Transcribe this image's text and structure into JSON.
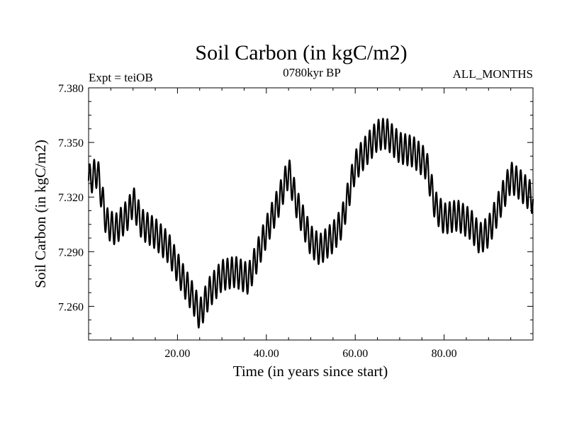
{
  "chart_data": {
    "type": "line",
    "title": "Soil Carbon (in kgC/m2)",
    "subtitle": "0780kyr BP",
    "left_label": "Expt = teiOB",
    "right_label": "ALL_MONTHS",
    "xlabel": "Time (in years since start)",
    "ylabel": "Soil Carbon (in kgC/m2)",
    "xlim": [
      0,
      100
    ],
    "ylim": [
      7.2415,
      7.38
    ],
    "xticks": [
      20,
      40,
      60,
      80
    ],
    "xtick_labels": [
      "20.00",
      "40.00",
      "60.00",
      "80.00"
    ],
    "yticks": [
      7.26,
      7.29,
      7.32,
      7.35,
      7.38
    ],
    "ytick_labels": [
      "7.260",
      "7.290",
      "7.320",
      "7.350",
      "7.380"
    ],
    "grid": false,
    "series": [
      {
        "name": "Soil Carbon",
        "cycle_period_years": 1,
        "cycle_amplitude": 0.0085,
        "baseline_x": [
          0,
          2,
          4,
          6,
          9,
          10,
          12,
          15,
          18,
          21,
          24,
          25,
          27,
          30,
          33,
          36,
          40,
          43,
          45,
          47,
          50,
          52,
          55,
          57,
          60,
          62,
          65,
          67,
          70,
          73,
          76,
          78,
          80,
          83,
          86,
          88,
          90,
          93,
          95,
          97,
          100
        ],
        "baseline_y": [
          7.329,
          7.334,
          7.306,
          7.302,
          7.311,
          7.318,
          7.305,
          7.3,
          7.292,
          7.276,
          7.262,
          7.255,
          7.267,
          7.277,
          7.279,
          7.275,
          7.301,
          7.319,
          7.334,
          7.315,
          7.296,
          7.291,
          7.298,
          7.306,
          7.337,
          7.344,
          7.354,
          7.355,
          7.347,
          7.345,
          7.338,
          7.315,
          7.308,
          7.31,
          7.305,
          7.297,
          7.301,
          7.319,
          7.331,
          7.327,
          7.319
        ]
      }
    ]
  }
}
